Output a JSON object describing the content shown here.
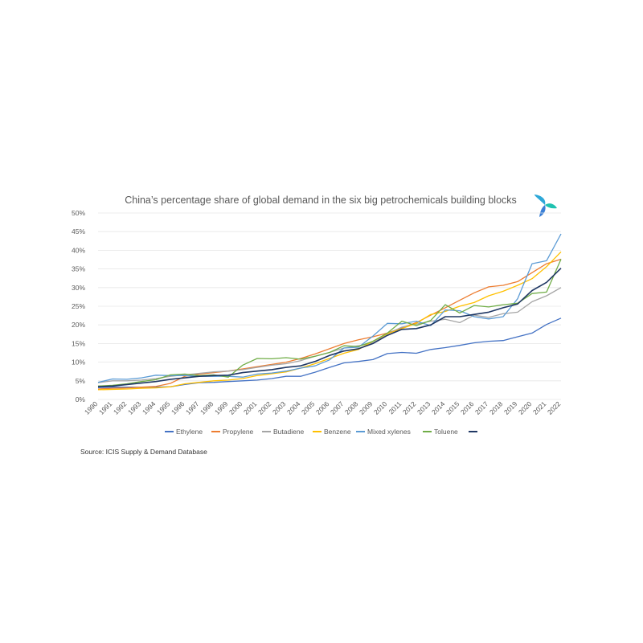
{
  "source": "Source: ICIS Supply & Demand Database",
  "chart_data": {
    "type": "line",
    "title": "China’s percentage share of global demand in the six big petrochemicals building blocks",
    "xlabel": "",
    "ylabel": "",
    "ylim": [
      0,
      50
    ],
    "y_ticks": [
      "0%",
      "5%",
      "10%",
      "15%",
      "20%",
      "25%",
      "30%",
      "35%",
      "40%",
      "45%",
      "50%"
    ],
    "grid": true,
    "legend_position": "bottom",
    "x": [
      "1990",
      "1991",
      "1992",
      "1993",
      "1994",
      "1995",
      "1996",
      "1997",
      "1998",
      "1999",
      "2000",
      "2001",
      "2002",
      "2003",
      "2004",
      "2005",
      "2006",
      "2007",
      "2008",
      "2009",
      "2010",
      "2011",
      "2012",
      "2013",
      "2014",
      "2015",
      "2016",
      "2017",
      "2018",
      "2019",
      "2020",
      "2021",
      "2022"
    ],
    "series": [
      {
        "name": "Ethylene",
        "color": "#4472c4",
        "values": [
          3.2,
          3.3,
          3.3,
          3.3,
          3.3,
          3.4,
          4.0,
          4.5,
          4.6,
          4.8,
          5.0,
          5.2,
          5.6,
          6.2,
          6.2,
          7.3,
          8.6,
          9.8,
          10.2,
          10.7,
          12.3,
          12.6,
          12.4,
          13.4,
          13.9,
          14.5,
          15.2,
          15.6,
          15.8,
          16.8,
          17.8,
          20.1,
          21.8
        ]
      },
      {
        "name": "Propylene",
        "color": "#ed7d31",
        "values": [
          2.8,
          3.0,
          3.1,
          3.3,
          3.5,
          4.3,
          6.2,
          6.8,
          7.2,
          7.6,
          8.2,
          8.8,
          9.4,
          10.0,
          11.0,
          12.2,
          13.6,
          15.0,
          16.0,
          16.8,
          17.8,
          19.2,
          20.6,
          22.6,
          24.6,
          26.6,
          28.6,
          30.2,
          30.6,
          31.6,
          34.0,
          36.4,
          37.6
        ]
      },
      {
        "name": "Butadiene",
        "color": "#a5a5a5",
        "values": [
          4.5,
          5.0,
          5.0,
          5.2,
          5.6,
          6.2,
          6.6,
          7.0,
          7.4,
          7.6,
          8.0,
          8.6,
          9.2,
          9.6,
          10.4,
          11.6,
          12.6,
          13.8,
          14.4,
          15.2,
          17.6,
          19.4,
          20.2,
          21.0,
          21.5,
          20.6,
          22.6,
          22.0,
          23.0,
          23.4,
          26.2,
          27.8,
          30.0
        ]
      },
      {
        "name": "Benzene",
        "color": "#ffc000",
        "values": [
          2.6,
          2.7,
          2.8,
          3.0,
          3.1,
          3.4,
          4.2,
          4.6,
          5.0,
          5.2,
          5.6,
          6.4,
          6.9,
          7.4,
          8.4,
          9.6,
          11.0,
          12.4,
          13.4,
          15.6,
          17.6,
          19.0,
          20.4,
          22.8,
          23.6,
          25.0,
          26.0,
          27.8,
          29.0,
          30.6,
          32.4,
          35.6,
          39.6
        ]
      },
      {
        "name": "Mixed xylenes",
        "color": "#5b9bd5",
        "values": [
          4.6,
          5.5,
          5.4,
          5.8,
          6.5,
          6.4,
          6.4,
          6.2,
          6.2,
          6.2,
          6.0,
          6.8,
          7.1,
          7.6,
          8.4,
          9.0,
          10.6,
          13.8,
          14.0,
          17.0,
          20.4,
          20.3,
          21.0,
          19.8,
          24.0,
          23.8,
          22.2,
          21.6,
          22.2,
          27.0,
          36.4,
          37.2,
          44.4
        ]
      },
      {
        "name": "Toluene",
        "color": "#70ad47",
        "values": [
          3.6,
          3.8,
          4.2,
          4.8,
          5.3,
          6.6,
          6.8,
          6.4,
          6.6,
          6.0,
          9.2,
          11.0,
          10.9,
          11.2,
          10.8,
          11.6,
          12.6,
          14.4,
          14.2,
          15.6,
          17.8,
          21.0,
          19.8,
          21.2,
          25.4,
          23.2,
          25.2,
          24.8,
          25.4,
          25.8,
          28.4,
          28.8,
          37.6
        ]
      },
      {
        "name": "",
        "color": "#203864",
        "values": [
          3.4,
          3.6,
          4.0,
          4.4,
          4.8,
          5.4,
          5.8,
          6.2,
          6.4,
          6.5,
          7.2,
          7.6,
          8.0,
          8.6,
          9.0,
          10.2,
          11.8,
          13.0,
          13.6,
          15.0,
          17.2,
          18.8,
          19.0,
          20.0,
          22.2,
          22.2,
          22.8,
          23.4,
          24.6,
          25.6,
          29.2,
          31.4,
          35.2
        ]
      }
    ]
  }
}
